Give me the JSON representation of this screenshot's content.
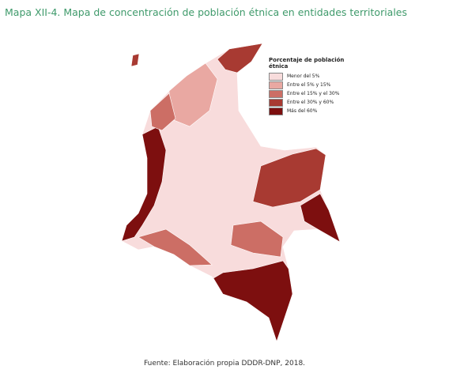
{
  "title": "Mapa XII-4. Mapa de concentración de población étnica en entidades territoriales",
  "legend": {
    "title": "Porcentaje de población étnica",
    "items": [
      {
        "label": "Menor del 5%",
        "color": "#f8dcdc"
      },
      {
        "label": "Entre el 5% y 15%",
        "color": "#e9a8a2"
      },
      {
        "label": "Entre el 15% y el 30%",
        "color": "#cc6e65"
      },
      {
        "label": "Entre el 30% y 60%",
        "color": "#a83a32"
      },
      {
        "label": "Más del 60%",
        "color": "#7d0f0f"
      }
    ]
  },
  "source": "Fuente: Elaboración propia DDDR-DNP, 2018."
}
